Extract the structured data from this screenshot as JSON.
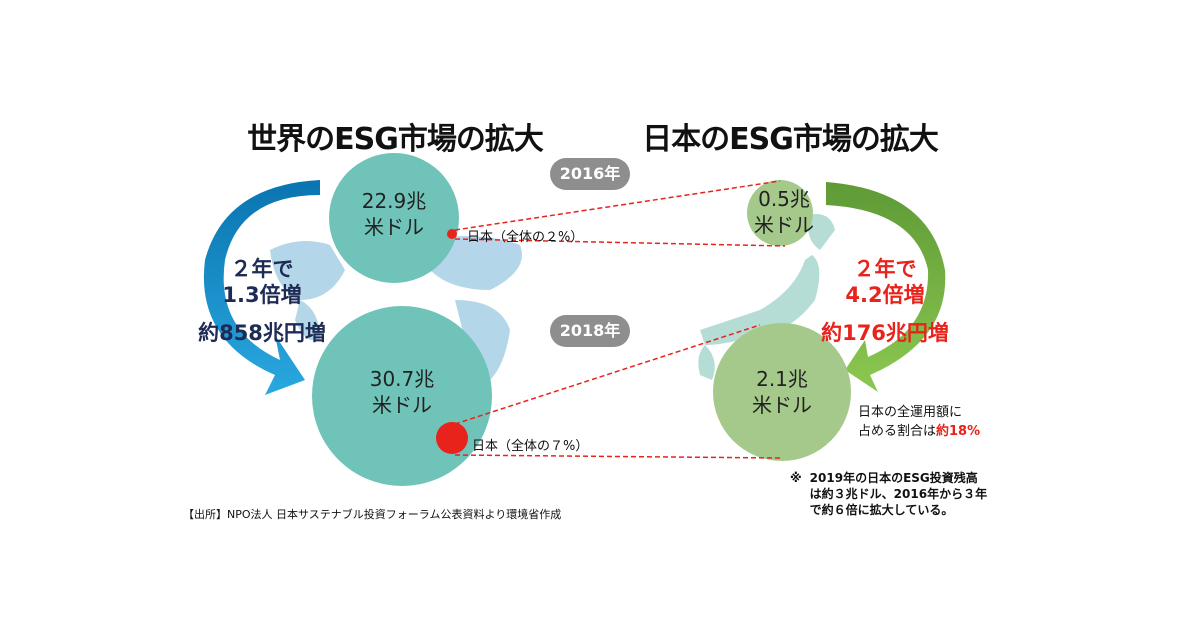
{
  "world": {
    "title": "世界のESG市場の拡大",
    "y2016": {
      "value": "22.9兆",
      "unit": "米ドル",
      "japan_label": "日本（全体の２%）"
    },
    "y2018": {
      "value": "30.7兆",
      "unit": "米ドル",
      "japan_label": "日本（全体の７%）"
    },
    "growth": {
      "line1": "２年で",
      "line2": "1.3倍増",
      "line3": "約858兆円増"
    }
  },
  "japan": {
    "title": "日本のESG市場の拡大",
    "y2016": {
      "value": "0.5兆",
      "unit": "米ドル"
    },
    "y2018": {
      "value": "2.1兆",
      "unit": "米ドル"
    },
    "growth": {
      "line1": "２年で",
      "line2": "4.2倍増",
      "line3": "約176兆円増"
    },
    "share": {
      "line1": "日本の全運用額に",
      "line2_prefix": "占める割合は",
      "line2_value": "約18%"
    }
  },
  "years": {
    "first": "2016年",
    "second": "2018年"
  },
  "note": {
    "mark": "※",
    "line1": "2019年の日本のESG投資残高",
    "line2": "は約３兆ドル、2016年から３年",
    "line3": "で約６倍に拡大している。"
  },
  "source": "【出所】NPO法人 日本サステナブル投資フォーラム公表資料より環境省作成",
  "colors": {
    "world_circle": "#6fc3b8",
    "japan_circle": "#a5c98a",
    "japan_dot": "#e8231b",
    "pill": "#8e8e8e",
    "growth_world": "#1d2b55",
    "growth_japan": "#e8231b"
  }
}
